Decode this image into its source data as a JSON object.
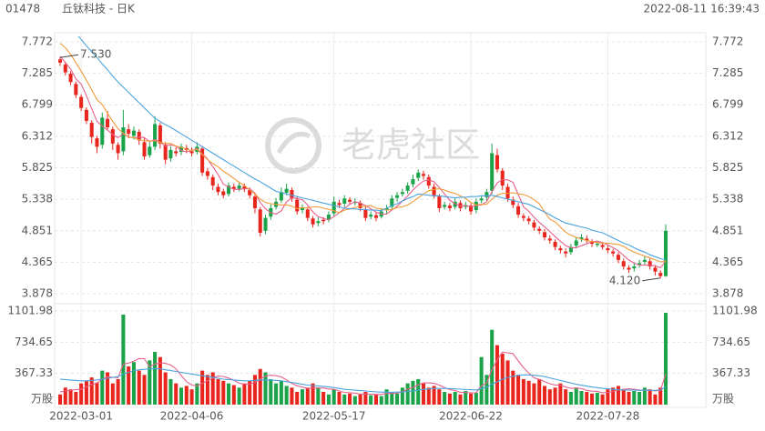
{
  "chart_data": {
    "type": "candlestick",
    "symbol": "01478",
    "title": "丘钛科技 - 日K",
    "timestamp": "2022-08-11 16:39:43",
    "watermark": "老虎社区",
    "up_color": "#1ba34a",
    "down_color": "#e8261d",
    "categories": [
      null,
      null,
      null,
      null,
      "2022-03-01",
      null,
      null,
      null,
      null,
      null,
      null,
      null,
      null,
      null,
      null,
      null,
      null,
      null,
      null,
      null,
      null,
      null,
      null,
      null,
      null,
      "2022-04-06",
      null,
      null,
      null,
      null,
      null,
      null,
      null,
      null,
      null,
      null,
      null,
      null,
      null,
      null,
      null,
      null,
      null,
      null,
      null,
      null,
      null,
      null,
      null,
      null,
      null,
      null,
      "2022-05-17",
      null,
      null,
      null,
      null,
      null,
      null,
      null,
      null,
      null,
      null,
      null,
      null,
      null,
      null,
      null,
      null,
      null,
      null,
      null,
      null,
      null,
      null,
      null,
      null,
      null,
      "2022-06-22",
      null,
      null,
      null,
      null,
      null,
      null,
      null,
      null,
      null,
      null,
      null,
      null,
      null,
      null,
      null,
      null,
      null,
      null,
      null,
      null,
      null,
      null,
      null,
      null,
      null,
      "2022-07-28",
      null,
      null,
      null,
      null,
      null,
      null,
      null,
      null,
      null,
      null,
      null
    ],
    "open": [
      7.5,
      7.42,
      7.28,
      7.12,
      6.92,
      6.72,
      6.52,
      6.28,
      6.18,
      6.58,
      6.42,
      6.18,
      6.08,
      6.42,
      6.32,
      6.38,
      6.22,
      6.02,
      6.15,
      6.48,
      6.18,
      5.97,
      6.08,
      6.07,
      6.13,
      6.08,
      6.07,
      6.12,
      5.77,
      5.68,
      5.53,
      5.46,
      5.42,
      5.53,
      5.5,
      5.54,
      5.48,
      5.38,
      5.18,
      4.85,
      5.07,
      5.22,
      5.32,
      5.44,
      5.48,
      5.33,
      5.17,
      5.18,
      5.04,
      4.97,
      5.02,
      5.02,
      5.12,
      5.28,
      5.27,
      5.33,
      5.28,
      5.28,
      5.18,
      5.07,
      5.09,
      5.07,
      5.17,
      5.22,
      5.36,
      5.42,
      5.47,
      5.57,
      5.67,
      5.73,
      5.68,
      5.53,
      5.38,
      5.22,
      5.24,
      5.22,
      5.28,
      5.22,
      5.24,
      5.17,
      5.32,
      5.37,
      5.47,
      6.02,
      5.78,
      5.53,
      5.33,
      5.23,
      5.08,
      5.04,
      4.98,
      4.88,
      4.83,
      4.73,
      4.68,
      4.58,
      4.53,
      4.52,
      4.62,
      4.72,
      4.73,
      4.68,
      4.63,
      4.63,
      4.58,
      4.53,
      4.48,
      4.38,
      4.28,
      4.27,
      4.32,
      4.37,
      4.38,
      4.28,
      4.2,
      4.15
    ],
    "high": [
      7.53,
      7.46,
      7.32,
      7.16,
      6.96,
      6.76,
      6.56,
      6.32,
      6.68,
      6.7,
      6.46,
      6.22,
      6.72,
      6.5,
      6.46,
      6.42,
      6.28,
      6.22,
      6.62,
      6.52,
      6.22,
      6.16,
      6.14,
      6.2,
      6.18,
      6.14,
      6.22,
      6.16,
      5.82,
      5.72,
      5.58,
      5.5,
      5.6,
      5.58,
      5.6,
      5.58,
      5.52,
      5.42,
      5.22,
      5.1,
      5.26,
      5.36,
      5.52,
      5.58,
      5.52,
      5.38,
      5.26,
      5.22,
      5.08,
      5.06,
      5.06,
      5.15,
      5.38,
      5.33,
      5.4,
      5.37,
      5.35,
      5.32,
      5.22,
      5.15,
      5.13,
      5.2,
      5.25,
      5.4,
      5.45,
      5.5,
      5.6,
      5.72,
      5.8,
      5.78,
      5.72,
      5.58,
      5.42,
      5.3,
      5.28,
      5.35,
      5.32,
      5.3,
      5.28,
      5.35,
      5.4,
      5.5,
      6.2,
      6.12,
      5.82,
      5.58,
      5.38,
      5.28,
      5.12,
      5.08,
      5.02,
      4.92,
      4.88,
      4.78,
      4.72,
      4.62,
      4.58,
      4.65,
      4.75,
      4.8,
      4.78,
      4.72,
      4.7,
      4.67,
      4.62,
      4.57,
      4.52,
      4.42,
      4.32,
      4.36,
      4.4,
      4.46,
      4.42,
      4.32,
      4.24,
      4.95
    ],
    "low": [
      7.4,
      7.25,
      7.1,
      6.9,
      6.7,
      6.5,
      6.2,
      6.05,
      6.12,
      6.4,
      6.1,
      5.95,
      6.02,
      6.28,
      6.26,
      6.18,
      5.95,
      5.98,
      6.1,
      6.12,
      5.88,
      5.92,
      6.0,
      6.02,
      6.05,
      6.0,
      6.03,
      5.7,
      5.64,
      5.48,
      5.4,
      5.35,
      5.38,
      5.45,
      5.46,
      5.45,
      5.35,
      5.12,
      4.76,
      4.8,
      5.02,
      5.18,
      5.28,
      5.4,
      5.3,
      5.1,
      5.12,
      5.0,
      4.9,
      4.92,
      4.95,
      4.98,
      5.08,
      5.2,
      5.22,
      5.26,
      5.24,
      5.15,
      5.0,
      5.03,
      5.0,
      5.04,
      5.12,
      5.18,
      5.3,
      5.38,
      5.42,
      5.52,
      5.62,
      5.64,
      5.5,
      5.35,
      5.14,
      5.18,
      5.15,
      5.18,
      5.15,
      5.18,
      5.1,
      5.12,
      5.28,
      5.32,
      5.42,
      5.75,
      5.48,
      5.3,
      5.2,
      5.05,
      5.0,
      4.95,
      4.85,
      4.8,
      4.7,
      4.65,
      4.55,
      4.5,
      4.44,
      4.48,
      4.58,
      4.68,
      4.66,
      4.6,
      4.6,
      4.56,
      4.5,
      4.45,
      4.35,
      4.25,
      4.2,
      4.22,
      4.28,
      4.32,
      4.25,
      4.16,
      4.12,
      4.14
    ],
    "close": [
      7.45,
      7.3,
      7.15,
      6.95,
      6.75,
      6.55,
      6.3,
      6.15,
      6.6,
      6.45,
      6.2,
      6.05,
      6.45,
      6.35,
      6.4,
      6.25,
      6.0,
      6.15,
      6.5,
      6.2,
      5.95,
      6.1,
      6.05,
      6.15,
      6.1,
      6.05,
      6.15,
      5.75,
      5.7,
      5.55,
      5.45,
      5.4,
      5.55,
      5.5,
      5.55,
      5.5,
      5.4,
      5.2,
      4.82,
      5.05,
      5.2,
      5.3,
      5.45,
      5.5,
      5.35,
      5.15,
      5.2,
      5.05,
      4.95,
      5.0,
      5.0,
      5.1,
      5.3,
      5.25,
      5.35,
      5.3,
      5.3,
      5.2,
      5.05,
      5.1,
      5.05,
      5.15,
      5.2,
      5.35,
      5.4,
      5.45,
      5.55,
      5.65,
      5.75,
      5.7,
      5.55,
      5.4,
      5.2,
      5.25,
      5.2,
      5.3,
      5.2,
      5.25,
      5.15,
      5.3,
      5.35,
      5.45,
      6.05,
      5.8,
      5.55,
      5.35,
      5.25,
      5.1,
      5.05,
      5.0,
      4.9,
      4.85,
      4.75,
      4.7,
      4.6,
      4.55,
      4.5,
      4.6,
      4.7,
      4.75,
      4.7,
      4.65,
      4.65,
      4.6,
      4.55,
      4.5,
      4.4,
      4.3,
      4.25,
      4.3,
      4.35,
      4.4,
      4.3,
      4.22,
      4.15,
      4.85
    ],
    "ylim": [
      3.878,
      7.772
    ],
    "yticks": [
      3.878,
      4.365,
      4.851,
      5.338,
      5.825,
      6.312,
      6.799,
      7.285,
      7.772
    ],
    "annotations": [
      {
        "label": "7.530",
        "value": 7.53
      },
      {
        "label": "4.120",
        "value": 4.12
      }
    ],
    "price_lines": [
      {
        "color": "#e8608a",
        "values": [
          7.55,
          7.45,
          7.35,
          7.2,
          7.12,
          6.94,
          6.74,
          6.54,
          6.47,
          6.41,
          6.34,
          6.29,
          6.35,
          6.3,
          6.29,
          6.3,
          6.29,
          6.23,
          6.26,
          6.22,
          6.16,
          6.18,
          6.16,
          6.09,
          6.07,
          6.09,
          6.12,
          6.04,
          5.96,
          5.84,
          5.72,
          5.57,
          5.53,
          5.49,
          5.49,
          5.5,
          5.5,
          5.43,
          5.29,
          5.19,
          5.13,
          5.11,
          5.16,
          5.3,
          5.36,
          5.35,
          5.33,
          5.25,
          5.14,
          5.07,
          5.04,
          5.02,
          5.07,
          5.13,
          5.2,
          5.26,
          5.3,
          5.28,
          5.24,
          5.19,
          5.14,
          5.11,
          5.11,
          5.17,
          5.23,
          5.31,
          5.39,
          5.48,
          5.56,
          5.62,
          5.64,
          5.61,
          5.52,
          5.42,
          5.32,
          5.27,
          5.23,
          5.24,
          5.22,
          5.24,
          5.25,
          5.3,
          5.46,
          5.59,
          5.64,
          5.64,
          5.6,
          5.41,
          5.22,
          5.15,
          5.06,
          4.98,
          4.91,
          4.84,
          4.76,
          4.69,
          4.62,
          4.59,
          4.59,
          4.62,
          4.65,
          4.68,
          4.69,
          4.67,
          4.63,
          4.59,
          4.54,
          4.47,
          4.4,
          4.35,
          4.32,
          4.32,
          4.32,
          4.31,
          4.28,
          4.38
        ]
      },
      {
        "color": "#f29a38",
        "values": [
          7.75,
          7.68,
          7.58,
          7.45,
          7.32,
          7.18,
          7.03,
          6.88,
          6.8,
          6.67,
          6.54,
          6.43,
          6.36,
          6.3,
          6.29,
          6.26,
          6.24,
          6.24,
          6.24,
          6.22,
          6.2,
          6.2,
          6.16,
          6.14,
          6.11,
          6.09,
          6.11,
          6.03,
          5.95,
          5.89,
          5.84,
          5.77,
          5.72,
          5.66,
          5.6,
          5.55,
          5.48,
          5.42,
          5.34,
          5.29,
          5.27,
          5.26,
          5.25,
          5.25,
          5.23,
          5.19,
          5.21,
          5.2,
          5.22,
          5.22,
          5.2,
          5.18,
          5.16,
          5.13,
          5.17,
          5.19,
          5.21,
          5.23,
          5.23,
          5.24,
          5.2,
          5.19,
          5.17,
          5.18,
          5.21,
          5.22,
          5.25,
          5.3,
          5.36,
          5.42,
          5.47,
          5.49,
          5.5,
          5.48,
          5.45,
          5.43,
          5.39,
          5.35,
          5.29,
          5.25,
          5.26,
          5.26,
          5.34,
          5.4,
          5.43,
          5.43,
          5.44,
          5.42,
          5.41,
          5.38,
          5.33,
          5.27,
          5.14,
          5.03,
          4.99,
          4.91,
          4.83,
          4.78,
          4.75,
          4.72,
          4.7,
          4.68,
          4.67,
          4.66,
          4.66,
          4.65,
          4.64,
          4.61,
          4.56,
          4.52,
          4.49,
          4.46,
          4.43,
          4.4,
          4.37,
          4.38
        ]
      },
      {
        "color": "#4aa3df",
        "values": [
          8.0,
          7.97,
          7.93,
          7.9,
          7.81,
          7.71,
          7.62,
          7.53,
          7.43,
          7.34,
          7.24,
          7.15,
          7.07,
          6.99,
          6.91,
          6.83,
          6.75,
          6.67,
          6.59,
          6.54,
          6.49,
          6.45,
          6.4,
          6.35,
          6.3,
          6.25,
          6.2,
          6.15,
          6.1,
          6.05,
          6.0,
          5.95,
          5.9,
          5.85,
          5.8,
          5.75,
          5.7,
          5.65,
          5.61,
          5.56,
          5.51,
          5.46,
          5.44,
          5.42,
          5.4,
          5.38,
          5.36,
          5.34,
          5.32,
          5.3,
          5.28,
          5.26,
          5.24,
          5.22,
          5.2,
          5.19,
          5.19,
          5.18,
          5.18,
          5.17,
          5.17,
          5.16,
          5.2,
          5.24,
          5.27,
          5.31,
          5.35,
          5.38,
          5.42,
          5.41,
          5.4,
          5.39,
          5.39,
          5.38,
          5.37,
          5.36,
          5.37,
          5.37,
          5.38,
          5.38,
          5.39,
          5.39,
          5.4,
          5.38,
          5.36,
          5.34,
          5.32,
          5.3,
          5.28,
          5.26,
          5.22,
          5.18,
          5.14,
          5.1,
          5.05,
          5.01,
          4.97,
          4.95,
          4.93,
          4.91,
          4.89,
          4.86,
          4.84,
          4.82,
          4.78,
          4.74,
          4.7,
          4.66,
          4.63,
          4.59,
          4.55,
          4.52,
          4.48,
          4.45,
          4.42,
          4.4
        ]
      }
    ],
    "volume": {
      "unit": "万股",
      "values": [
        120,
        200,
        180,
        150,
        250,
        280,
        320,
        260,
        400,
        380,
        250,
        300,
        1060,
        450,
        500,
        400,
        350,
        520,
        620,
        560,
        380,
        300,
        250,
        200,
        220,
        180,
        250,
        400,
        350,
        380,
        300,
        280,
        250,
        230,
        200,
        250,
        280,
        350,
        420,
        380,
        300,
        250,
        280,
        220,
        200,
        150,
        180,
        200,
        250,
        200,
        150,
        120,
        180,
        150,
        120,
        130,
        100,
        120,
        150,
        110,
        120,
        100,
        180,
        150,
        130,
        200,
        250,
        280,
        300,
        250,
        200,
        220,
        180,
        150,
        130,
        150,
        120,
        160,
        130,
        140,
        560,
        350,
        880,
        700,
        600,
        520,
        400,
        350,
        300,
        280,
        250,
        300,
        220,
        180,
        200,
        250,
        180,
        150,
        200,
        160,
        150,
        130,
        140,
        120,
        180,
        200,
        220,
        180,
        150,
        160,
        150,
        200,
        180,
        120,
        200,
        1080
      ],
      "ylim": [
        0,
        1101.98
      ],
      "yticks": [
        367.33,
        734.65,
        1101.98
      ],
      "lines": [
        {
          "color": "#e8608a",
          "values": [
            150,
            160,
            170,
            175,
            180,
            212,
            236,
            252,
            302,
            328,
            322,
            318,
            478,
            488,
            512,
            542,
            540,
            444,
            478,
            490,
            486,
            466,
            422,
            342,
            270,
            230,
            220,
            250,
            280,
            312,
            336,
            332,
            312,
            288,
            252,
            242,
            242,
            262,
            300,
            336,
            346,
            340,
            326,
            290,
            250,
            220,
            206,
            190,
            196,
            196,
            196,
            184,
            180,
            160,
            144,
            140,
            136,
            124,
            124,
            122,
            120,
            120,
            132,
            132,
            136,
            152,
            182,
            202,
            232,
            256,
            256,
            250,
            230,
            200,
            176,
            166,
            146,
            142,
            138,
            140,
            222,
            256,
            412,
            526,
            618,
            610,
            600,
            514,
            434,
            370,
            316,
            296,
            270,
            246,
            230,
            230,
            206,
            192,
            196,
            188,
            168,
            158,
            156,
            140,
            144,
            154,
            172,
            180,
            186,
            182,
            172,
            168,
            168,
            162,
            170,
            356
          ]
        },
        {
          "color": "#4aa3df",
          "values": [
            300,
            295,
            290,
            285,
            280,
            280,
            285,
            290,
            300,
            310,
            320,
            330,
            360,
            380,
            400,
            410,
            415,
            420,
            425,
            420,
            410,
            400,
            390,
            380,
            370,
            360,
            350,
            340,
            330,
            320,
            310,
            300,
            295,
            290,
            285,
            280,
            280,
            285,
            290,
            290,
            290,
            285,
            280,
            270,
            260,
            250,
            240,
            230,
            225,
            220,
            215,
            210,
            200,
            190,
            180,
            175,
            170,
            165,
            160,
            155,
            150,
            148,
            146,
            146,
            148,
            150,
            155,
            160,
            170,
            180,
            185,
            190,
            190,
            190,
            188,
            185,
            182,
            178,
            175,
            172,
            190,
            205,
            240,
            270,
            300,
            320,
            335,
            345,
            350,
            350,
            345,
            340,
            330,
            315,
            300,
            285,
            270,
            255,
            240,
            228,
            218,
            208,
            200,
            192,
            186,
            180,
            176,
            172,
            170,
            170,
            168,
            168,
            168,
            168,
            172,
            210
          ]
        }
      ]
    }
  }
}
